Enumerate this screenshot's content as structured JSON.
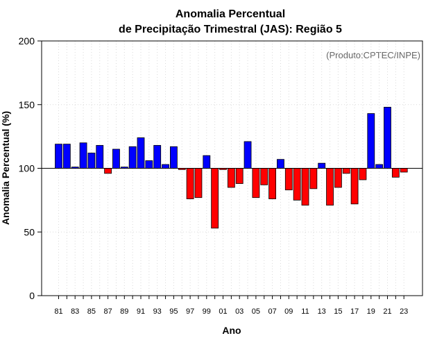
{
  "chart_data": {
    "type": "bar",
    "title_line1": "Anomalia Percentual",
    "title_line2": "de Precipitação Trimestral (JAS): Região 5",
    "xlabel": "Ano",
    "ylabel": "Anomalia Percentual (%)",
    "credit": "(Produto:CPTEC/INPE)",
    "ylim": [
      0,
      200
    ],
    "yticks": [
      0,
      50,
      100,
      150,
      200
    ],
    "baseline": 100,
    "grid": true,
    "colors": {
      "above": "#0000ff",
      "below": "#ff0000",
      "grid": "#d9d9d9",
      "axis": "#000000"
    },
    "years": [
      1981,
      1982,
      1983,
      1984,
      1985,
      1986,
      1987,
      1988,
      1989,
      1990,
      1991,
      1992,
      1993,
      1994,
      1995,
      1996,
      1997,
      1998,
      1999,
      2000,
      2001,
      2002,
      2003,
      2004,
      2005,
      2006,
      2007,
      2008,
      2009,
      2010,
      2011,
      2012,
      2013,
      2014,
      2015,
      2016,
      2017,
      2018,
      2019,
      2020,
      2021,
      2022,
      2023
    ],
    "values": [
      119,
      119,
      101,
      120,
      112,
      118,
      96,
      115,
      101,
      117,
      124,
      106,
      118,
      103,
      117,
      99,
      76,
      77,
      110,
      53,
      99,
      85,
      88,
      121,
      77,
      87,
      76,
      107,
      83,
      75,
      71,
      84,
      104,
      71,
      85,
      96,
      72,
      91,
      143,
      103,
      148,
      93,
      97
    ],
    "tick_labels": [
      "81",
      "83",
      "85",
      "87",
      "89",
      "91",
      "93",
      "95",
      "97",
      "99",
      "01",
      "03",
      "05",
      "07",
      "09",
      "11",
      "13",
      "15",
      "17",
      "19",
      "21",
      "23"
    ]
  }
}
